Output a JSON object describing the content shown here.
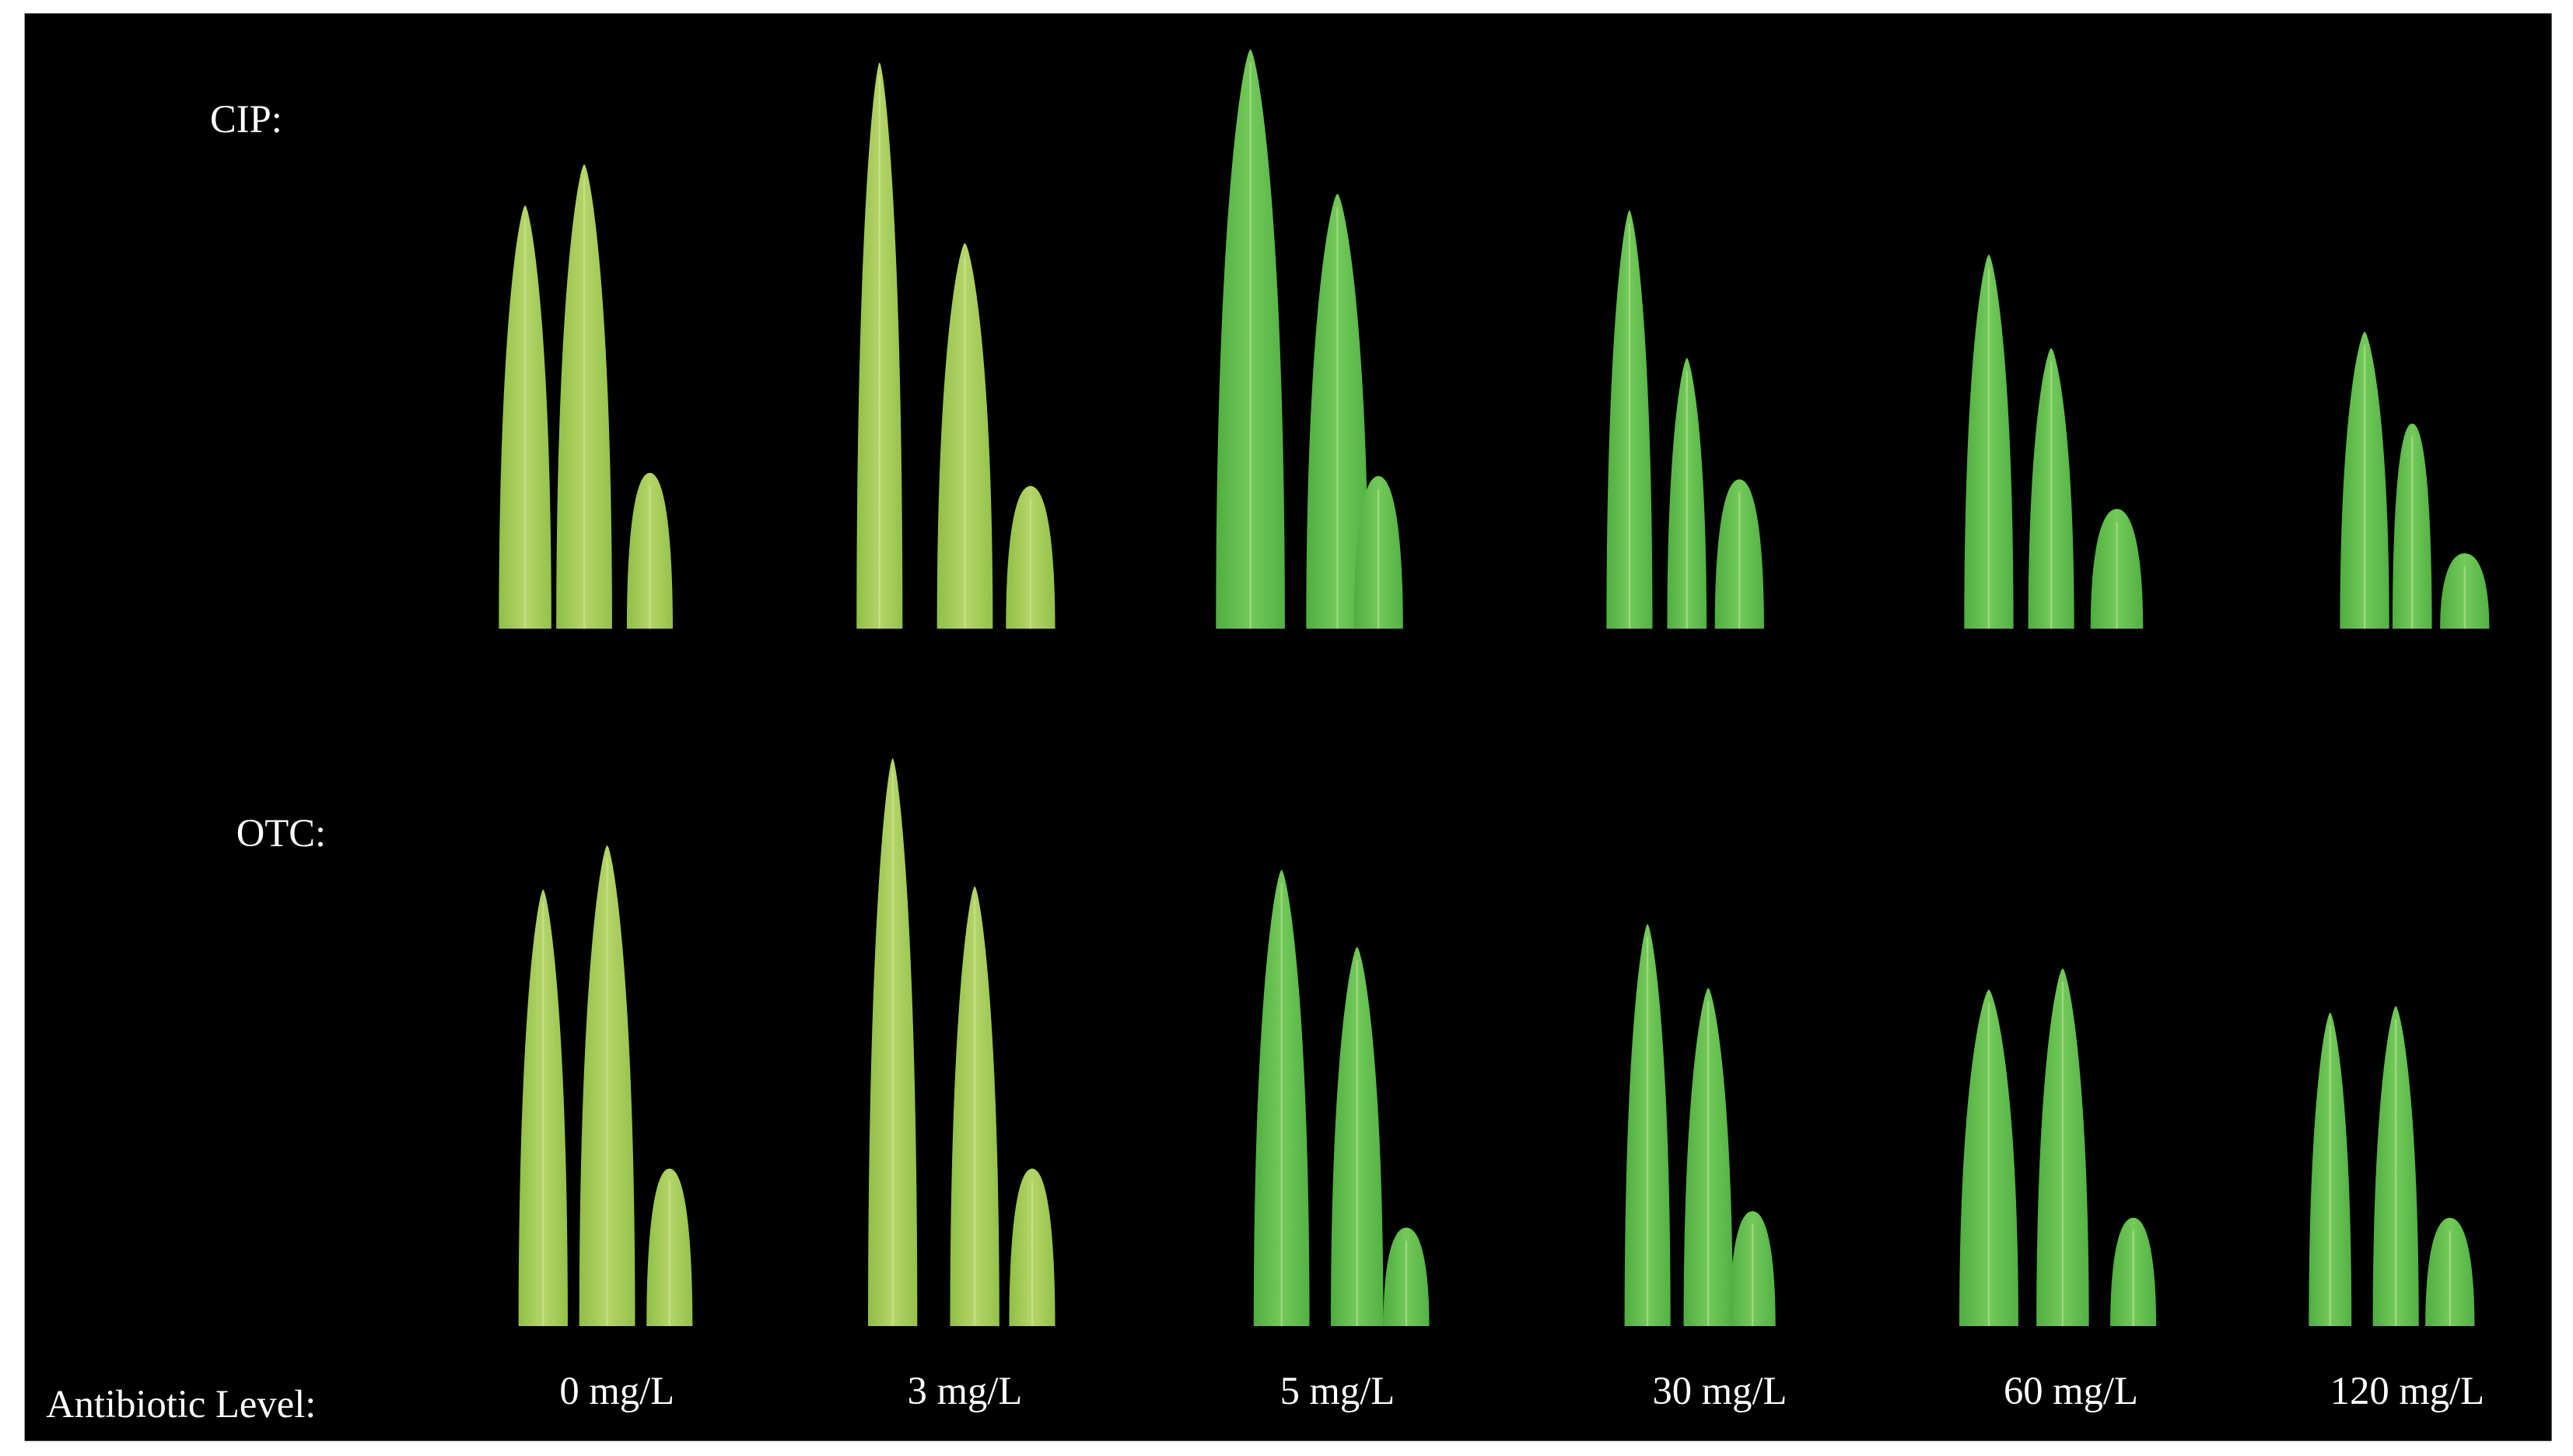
{
  "row_labels": [
    "CIP:",
    "OTC:"
  ],
  "axis_label": "Antibiotic Level:",
  "levels": [
    "0 mg/L",
    "3 mg/L",
    "5 mg/L",
    "30 mg/L",
    "60 mg/L",
    "120 mg/L"
  ]
}
